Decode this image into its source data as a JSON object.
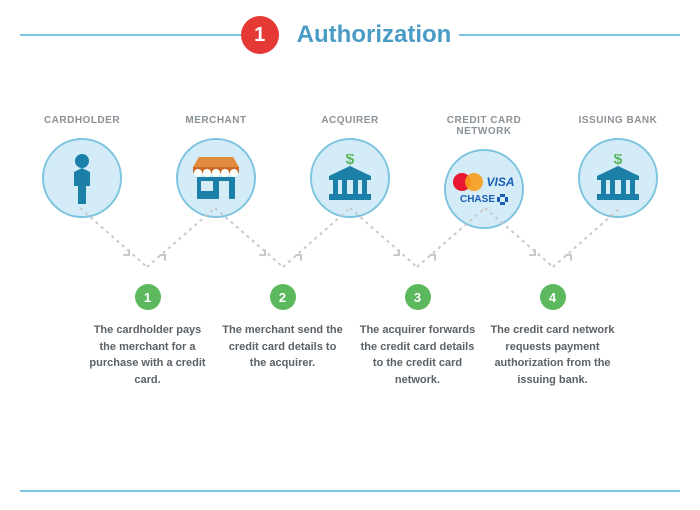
{
  "header": {
    "badge_number": "1",
    "title": "Authorization",
    "badge_bg": "#e53935",
    "title_color": "#4a9cc7",
    "line_color": "#7ec4e0"
  },
  "entities": [
    {
      "label": "CARDHOLDER",
      "icon": "person"
    },
    {
      "label": "MERCHANT",
      "icon": "store"
    },
    {
      "label": "ACQUIRER",
      "icon": "bank"
    },
    {
      "label": "CREDIT CARD NETWORK",
      "icon": "networks"
    },
    {
      "label": "ISSUING BANK",
      "icon": "bank"
    }
  ],
  "steps": [
    {
      "num": "1",
      "text": "The cardholder pays the merchant for a purchase with a credit card."
    },
    {
      "num": "2",
      "text": "The merchant send the credit card details to the acquirer."
    },
    {
      "num": "3",
      "text": "The acquirer forwards the credit card details to the credit card network."
    },
    {
      "num": "4",
      "text": "The credit card network requests payment authorization from the issuing bank."
    }
  ],
  "colors": {
    "circle_bg": "#d4ecf7",
    "circle_border": "#7ec4e0",
    "icon_primary": "#1b7fa8",
    "label_color": "#8a9299",
    "step_badge_bg": "#5cb85c",
    "step_text_color": "#5a6268",
    "connector_color": "#c8c8c8",
    "bottom_line_color": "#7ec4e0",
    "dollar_color": "#5cb85c",
    "store_accent": "#e08b3e",
    "mc_red": "#eb001b",
    "mc_yellow": "#f79e1b",
    "visa_color": "#1a5db4",
    "chase_color": "#1a5db4"
  },
  "logos": {
    "visa_text": "VISA",
    "chase_text": "CHASE"
  },
  "layout": {
    "entity_circle_size": 80,
    "fontsize_label": 10,
    "fontsize_step": 11,
    "fontsize_title": 24
  }
}
